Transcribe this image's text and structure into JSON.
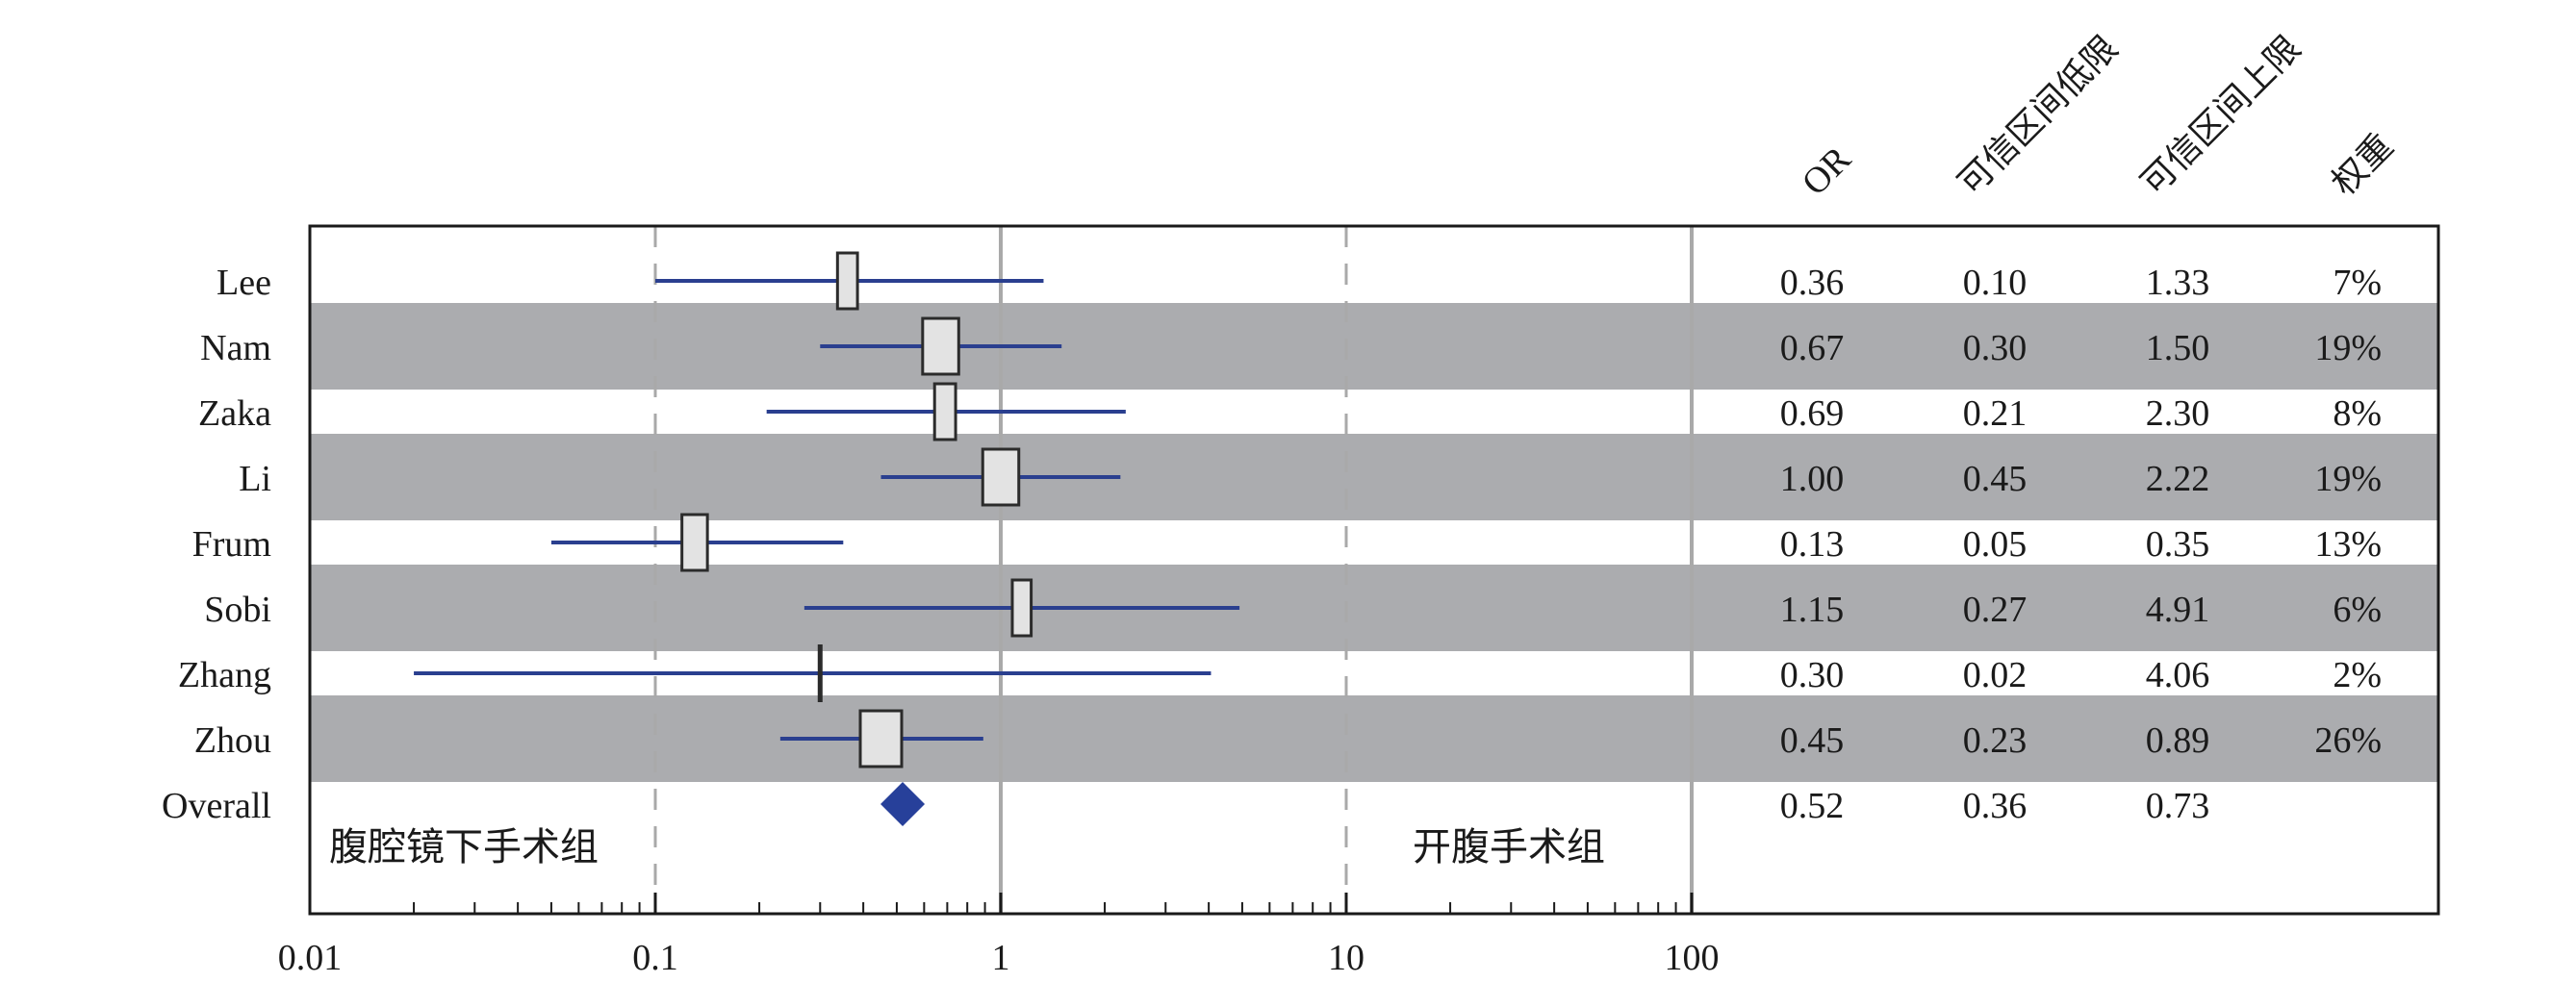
{
  "chart_data": {
    "type": "forest",
    "x_scale": "log",
    "xlim": [
      0.01,
      100
    ],
    "x_ticks": [
      0.01,
      0.1,
      1,
      10,
      100
    ],
    "x_tick_labels": [
      "0.01",
      "0.1",
      "1",
      "10",
      "100"
    ],
    "reference_lines": {
      "solid": [
        1
      ],
      "dashed": [
        0.1,
        10
      ]
    },
    "column_headers": [
      "OR",
      "可信区间低限",
      "可信区间上限",
      "权重"
    ],
    "left_region_label": "腹腔镜下手术组",
    "right_region_label": "开腹手术组",
    "studies": [
      {
        "name": "Lee",
        "or": 0.36,
        "lower": 0.1,
        "upper": 1.33,
        "weight": 7,
        "or_label": "0.36",
        "lower_label": "0.10",
        "upper_label": "1.33",
        "weight_label": "7%"
      },
      {
        "name": "Nam",
        "or": 0.67,
        "lower": 0.3,
        "upper": 1.5,
        "weight": 19,
        "or_label": "0.67",
        "lower_label": "0.30",
        "upper_label": "1.50",
        "weight_label": "19%"
      },
      {
        "name": "Zaka",
        "or": 0.69,
        "lower": 0.21,
        "upper": 2.3,
        "weight": 8,
        "or_label": "0.69",
        "lower_label": "0.21",
        "upper_label": "2.30",
        "weight_label": "8%"
      },
      {
        "name": "Li",
        "or": 1.0,
        "lower": 0.45,
        "upper": 2.22,
        "weight": 19,
        "or_label": "1.00",
        "lower_label": "0.45",
        "upper_label": "2.22",
        "weight_label": "19%"
      },
      {
        "name": "Frum",
        "or": 0.13,
        "lower": 0.05,
        "upper": 0.35,
        "weight": 13,
        "or_label": "0.13",
        "lower_label": "0.05",
        "upper_label": "0.35",
        "weight_label": "13%"
      },
      {
        "name": "Sobi",
        "or": 1.15,
        "lower": 0.27,
        "upper": 4.91,
        "weight": 6,
        "or_label": "1.15",
        "lower_label": "0.27",
        "upper_label": "4.91",
        "weight_label": "6%"
      },
      {
        "name": "Zhang",
        "or": 0.3,
        "lower": 0.02,
        "upper": 4.06,
        "weight": 2,
        "or_label": "0.30",
        "lower_label": "0.02",
        "upper_label": "4.06",
        "weight_label": "2%"
      },
      {
        "name": "Zhou",
        "or": 0.45,
        "lower": 0.23,
        "upper": 0.89,
        "weight": 26,
        "or_label": "0.45",
        "lower_label": "0.23",
        "upper_label": "0.89",
        "weight_label": "26%"
      }
    ],
    "overall": {
      "name": "Overall",
      "or": 0.52,
      "lower": 0.36,
      "upper": 0.73,
      "or_label": "0.52",
      "lower_label": "0.36",
      "upper_label": "0.73"
    },
    "colors": {
      "band": "#abacaf",
      "ci_line": "#2a3f8f",
      "diamond": "#27409a",
      "box_fill": "#e3e3e3",
      "box_stroke": "#2b2b2b",
      "ref_line": "#a9a9a9",
      "frame": "#1a1a1a",
      "text": "#1a1a1a"
    }
  }
}
